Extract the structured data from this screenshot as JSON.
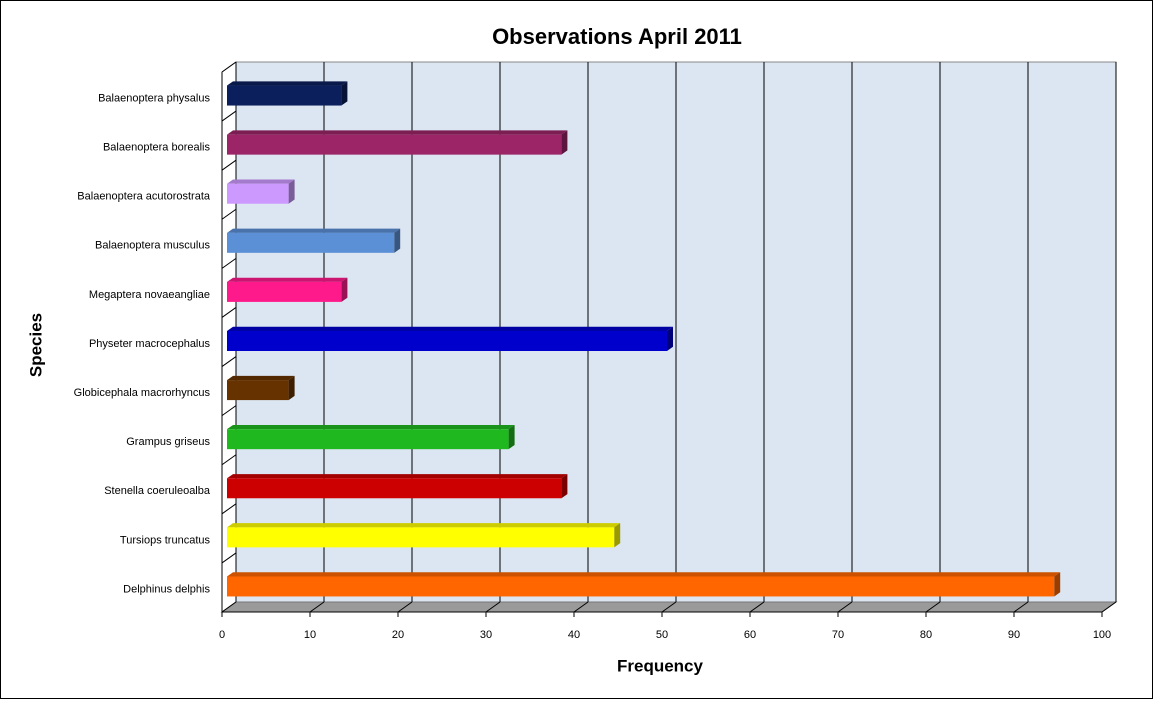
{
  "chart_data": {
    "type": "bar",
    "orientation": "horizontal",
    "title": "Observations April 2011",
    "x_label": "Frequency",
    "y_label": "Species",
    "categories": [
      "Balaenoptera physalus",
      "Balaenoptera borealis",
      "Balaenoptera acutorostrata",
      "Balaenoptera musculus",
      "Megaptera novaeangliae",
      "Physeter macrocephalus",
      "Globicephala macrorhyncus",
      "Grampus griseus",
      "Stenella coeruleoalba",
      "Tursiops truncatus",
      "Delphinus delphis"
    ],
    "values": [
      13,
      38,
      7,
      19,
      13,
      50,
      7,
      32,
      38,
      44,
      94
    ],
    "colors": [
      "#0a1f5c",
      "#9b2566",
      "#cc99ff",
      "#5b8fd6",
      "#ff1a8c",
      "#0000cc",
      "#663300",
      "#1fb81f",
      "#cc0000",
      "#ffff00",
      "#ff6600"
    ],
    "xlim": [
      0,
      100
    ],
    "xticks": [
      0,
      10,
      20,
      30,
      40,
      50,
      60,
      70,
      80,
      90,
      100
    ],
    "grid": true
  }
}
